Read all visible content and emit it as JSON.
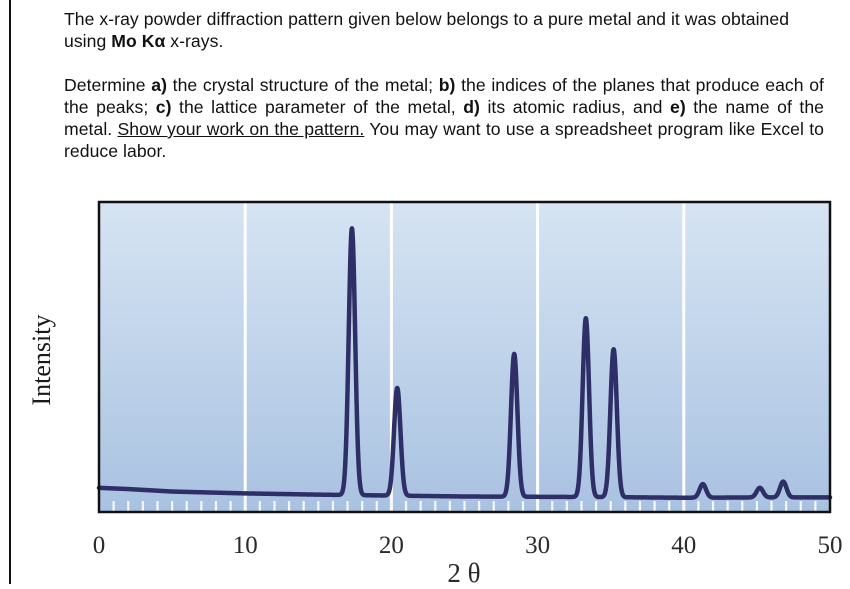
{
  "problem": {
    "intro_pre": "The x-ray powder diffraction pattern given below belongs to a pure metal and it was obtained using ",
    "intro_bold": "Mo Kα",
    "intro_post": " x-rays.",
    "q_start": "Determine ",
    "a_label": "a)",
    "a_text": " the crystal structure of the metal; ",
    "b_label": "b)",
    "b_text": " the indices of the planes that produce each of the peaks; ",
    "c_label": "c)",
    "c_text": " the lattice parameter of the metal, ",
    "d_label": "d)",
    "d_text": " its atomic radius, and ",
    "e_label": "e)",
    "e_text": " the name of the metal. ",
    "underlined": "Show your work on the pattern.",
    "closing": " You may want to use a spreadsheet program like Excel to reduce labor."
  },
  "chart_data": {
    "type": "line",
    "xlabel": "2 θ",
    "ylabel": "Intensity",
    "xlim": [
      0,
      50
    ],
    "ylim": [
      0,
      100
    ],
    "x_ticks": [
      "0",
      "10",
      "20",
      "30",
      "40",
      "50"
    ],
    "grid": "vertical white lines every 10",
    "colors": {
      "line": "#2e2f66",
      "plot_top": "#d4e2f2",
      "plot_bottom": "#a8c1e0",
      "frame": "#111111"
    },
    "baseline": [
      [
        0,
        7.8
      ],
      [
        2,
        7.4
      ],
      [
        5,
        6.6
      ],
      [
        10,
        6.0
      ],
      [
        15,
        5.6
      ],
      [
        20,
        5.3
      ],
      [
        25,
        5.0
      ],
      [
        30,
        4.9
      ],
      [
        35,
        4.8
      ],
      [
        40,
        4.6
      ],
      [
        45,
        4.7
      ],
      [
        50,
        4.7
      ]
    ],
    "peaks": [
      {
        "two_theta": 17.3,
        "intensity": 91.5
      },
      {
        "two_theta": 20.4,
        "intensity": 40.0
      },
      {
        "two_theta": 28.4,
        "intensity": 51.0
      },
      {
        "two_theta": 33.3,
        "intensity": 62.5
      },
      {
        "two_theta": 35.2,
        "intensity": 52.5
      },
      {
        "two_theta": 41.3,
        "intensity": 9.0
      },
      {
        "two_theta": 45.2,
        "intensity": 7.8
      },
      {
        "two_theta": 46.8,
        "intensity": 9.8
      }
    ]
  }
}
